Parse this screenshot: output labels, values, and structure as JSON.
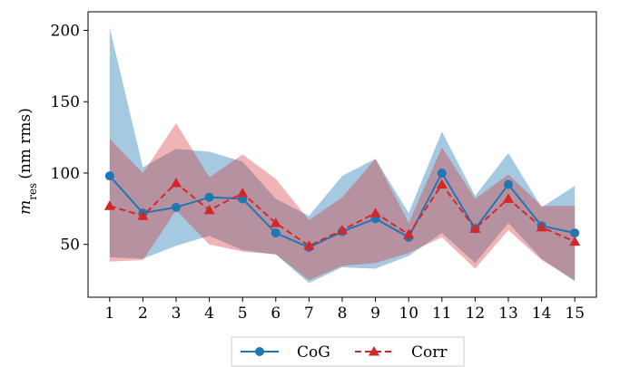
{
  "chart_data": {
    "type": "line",
    "title": "",
    "xlabel": "",
    "ylabel": {
      "symbol": "m",
      "subscript": "res",
      "unit": "(nm rms)"
    },
    "x": [
      1,
      2,
      3,
      4,
      5,
      6,
      7,
      8,
      9,
      10,
      11,
      12,
      13,
      14,
      15
    ],
    "xlim": [
      0.35,
      15.65
    ],
    "ylim": [
      13,
      213
    ],
    "yticks": [
      50,
      100,
      150,
      200
    ],
    "xticks": [
      1,
      2,
      3,
      4,
      5,
      6,
      7,
      8,
      9,
      10,
      11,
      12,
      13,
      14,
      15
    ],
    "grid": false,
    "legend_position": "bottom-center-outside",
    "series": [
      {
        "name": "CoG",
        "color": "#1f77b4",
        "line_style": "solid",
        "marker": "circle",
        "values": [
          98,
          72,
          76,
          83,
          82,
          58,
          48,
          59,
          68,
          55,
          100,
          61,
          92,
          63,
          58
        ],
        "band_upper": [
          202,
          104,
          117,
          115,
          108,
          82,
          70,
          98,
          110,
          72,
          129,
          84,
          114,
          76,
          91
        ],
        "band_lower": [
          41,
          40,
          49,
          56,
          46,
          43,
          23,
          34,
          33,
          42,
          58,
          37,
          65,
          40,
          24
        ],
        "band_color": "#1f77b4",
        "band_opacity": 0.4
      },
      {
        "name": "Corr",
        "color": "#d62728",
        "line_style": "dashed",
        "marker": "triangle",
        "values": [
          77,
          70,
          93,
          74,
          86,
          65,
          49,
          60,
          72,
          57,
          92,
          61,
          82,
          62,
          52
        ],
        "band_upper": [
          124,
          100,
          135,
          97,
          113,
          96,
          67,
          83,
          110,
          65,
          118,
          82,
          99,
          77,
          77
        ],
        "band_lower": [
          38,
          39,
          74,
          50,
          45,
          43,
          25,
          35,
          37,
          44,
          55,
          33,
          60,
          39,
          25
        ],
        "band_color": "#d62728",
        "band_opacity": 0.35
      }
    ]
  }
}
